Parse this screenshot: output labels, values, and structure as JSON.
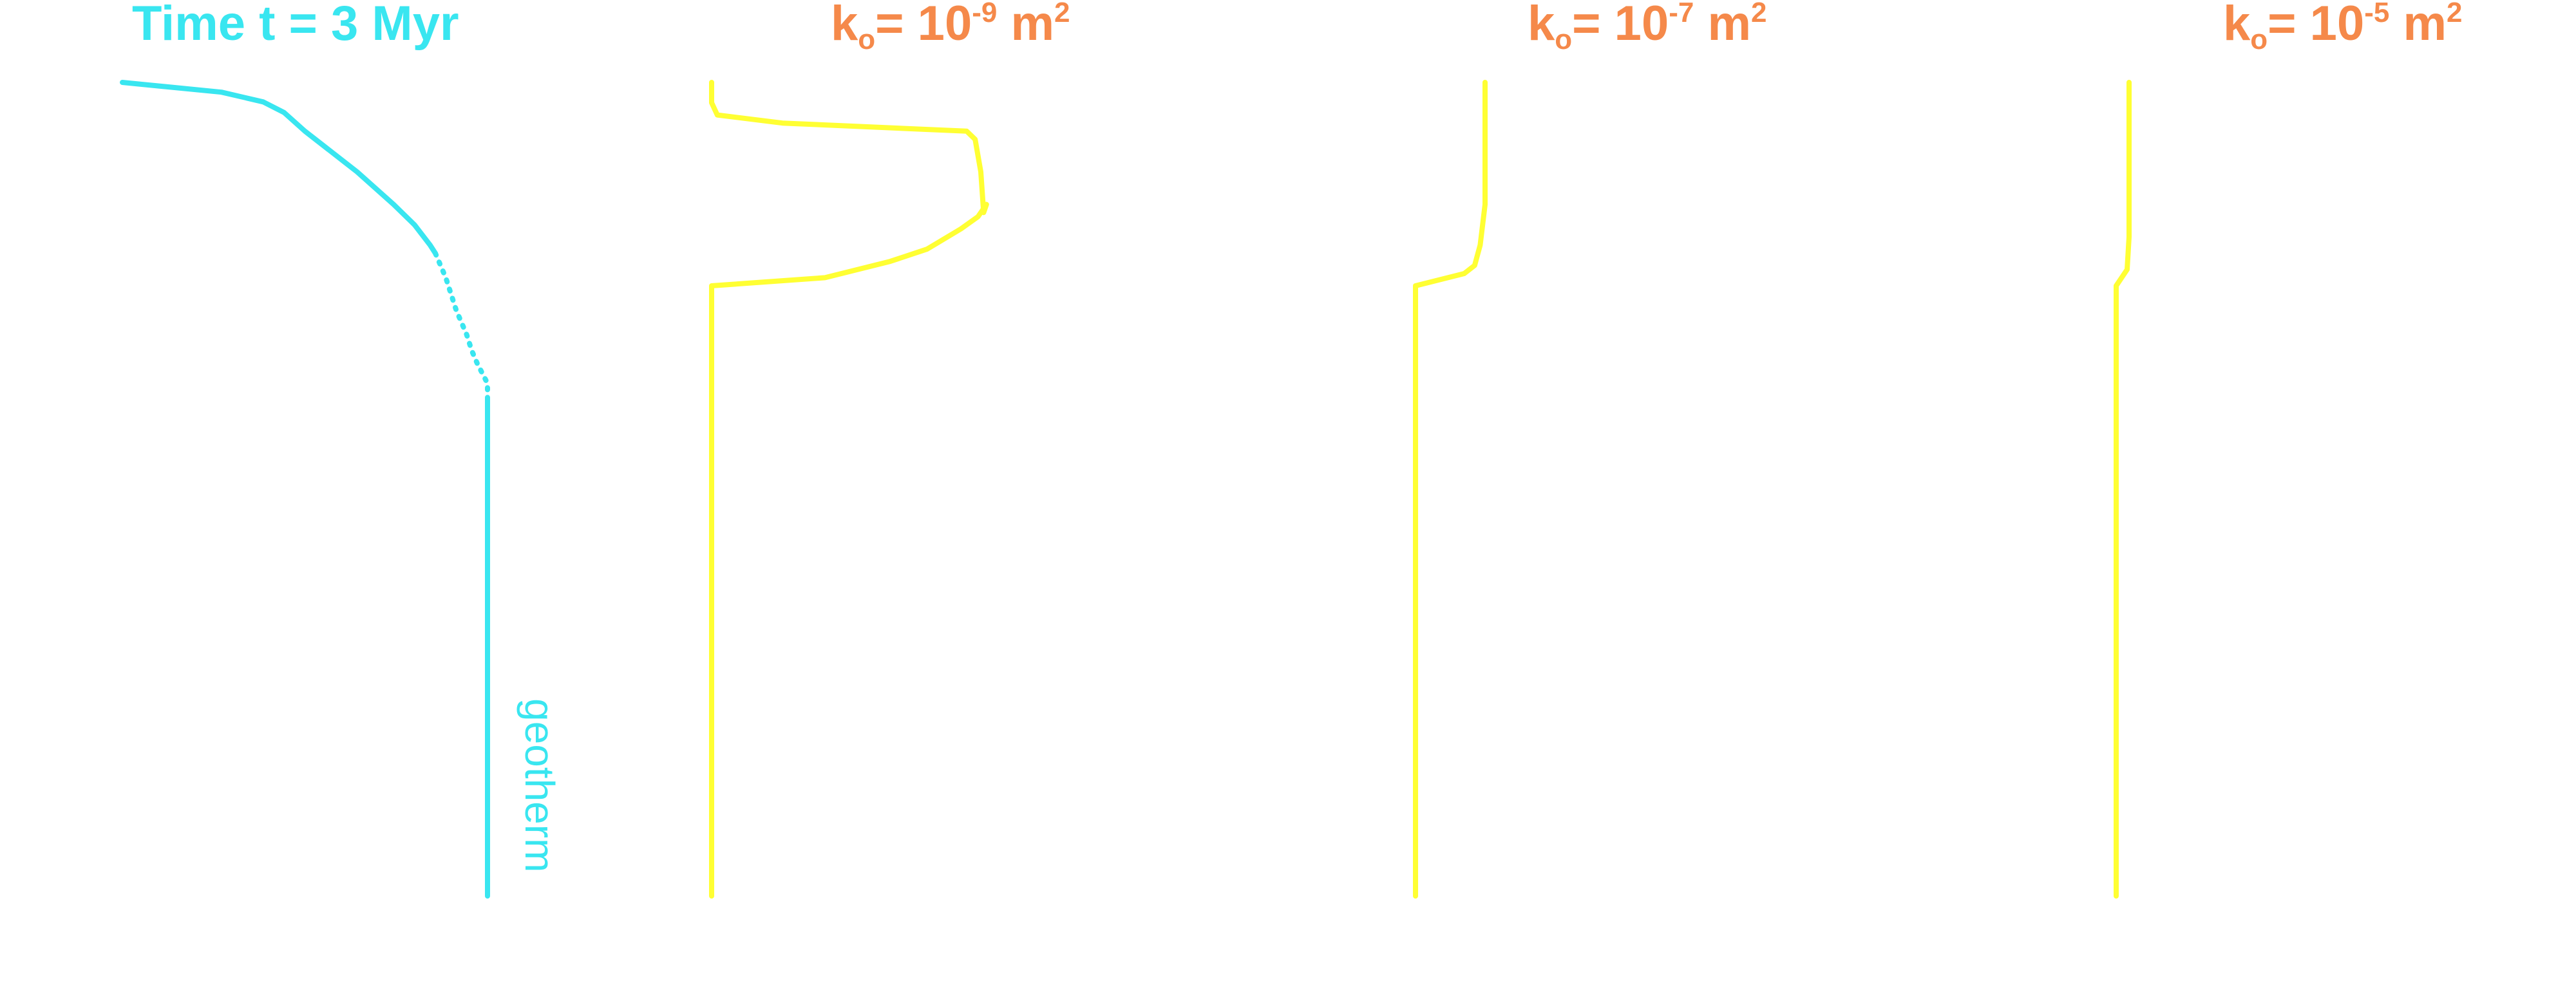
{
  "colors": {
    "geotherm": "#39e6f0",
    "profile": "#ffff33",
    "permeability_title": "#f5894a",
    "time_title": "#39e6f0"
  },
  "chart_data": {
    "type": "line",
    "grid": false,
    "legend": "none",
    "panels": [
      {
        "id": "geotherm",
        "title": {
          "text": "Time t = 3 Myr"
        },
        "line_label": "geotherm",
        "series": [
          {
            "style": "solid",
            "points": [
              [
                0.0,
                0.0
              ],
              [
                0.19,
                0.012
              ],
              [
                0.27,
                0.024
              ],
              [
                0.31,
                0.037
              ],
              [
                0.35,
                0.06
              ],
              [
                0.45,
                0.11
              ],
              [
                0.52,
                0.15
              ],
              [
                0.56,
                0.175
              ],
              [
                0.59,
                0.2
              ],
              [
                0.6,
                0.21
              ]
            ]
          },
          {
            "style": "dotted",
            "points": [
              [
                0.6,
                0.21
              ],
              [
                0.62,
                0.24
              ],
              [
                0.64,
                0.28
              ],
              [
                0.66,
                0.31
              ],
              [
                0.67,
                0.33
              ],
              [
                0.68,
                0.345
              ],
              [
                0.7,
                0.37
              ],
              [
                0.7,
                0.39
              ]
            ]
          },
          {
            "style": "solid",
            "points": [
              [
                0.7,
                0.39
              ],
              [
                0.7,
                1.0
              ]
            ]
          }
        ]
      },
      {
        "id": "k-1e-9",
        "title": {
          "prefix": "k",
          "subscript": "o",
          "middle": "= 10",
          "exponent": "-9",
          "suffix": " m",
          "unit_exponent": "2"
        },
        "series": [
          {
            "style": "solid",
            "points": [
              [
                0.0,
                0.0
              ],
              [
                0.0,
                0.025
              ],
              [
                0.02,
                0.04
              ],
              [
                0.25,
                0.05
              ],
              [
                0.9,
                0.06
              ],
              [
                0.93,
                0.07
              ],
              [
                0.95,
                0.11
              ],
              [
                0.96,
                0.16
              ],
              [
                0.97,
                0.15
              ],
              [
                0.94,
                0.165
              ],
              [
                0.88,
                0.18
              ],
              [
                0.76,
                0.205
              ],
              [
                0.63,
                0.22
              ],
              [
                0.4,
                0.24
              ],
              [
                0.0,
                0.25
              ],
              [
                0.0,
                1.0
              ]
            ]
          }
        ]
      },
      {
        "id": "k-1e-7",
        "title": {
          "prefix": "k",
          "subscript": "o",
          "middle": "= 10",
          "exponent": "-7",
          "suffix": " m",
          "unit_exponent": "2"
        },
        "series": [
          {
            "style": "solid",
            "points": [
              [
                1.0,
                0.0
              ],
              [
                1.0,
                0.15
              ],
              [
                0.93,
                0.2
              ],
              [
                0.85,
                0.225
              ],
              [
                0.7,
                0.235
              ],
              [
                0.0,
                0.25
              ],
              [
                0.0,
                1.0
              ]
            ]
          }
        ]
      },
      {
        "id": "k-1e-5",
        "title": {
          "prefix": "k",
          "subscript": "o",
          "middle": "= 10",
          "exponent": "-5",
          "suffix": " m",
          "unit_exponent": "2"
        },
        "series": [
          {
            "style": "solid",
            "points": [
              [
                1.0,
                0.0
              ],
              [
                1.0,
                0.19
              ],
              [
                0.85,
                0.23
              ],
              [
                0.0,
                0.25
              ],
              [
                0.0,
                1.0
              ]
            ]
          }
        ]
      }
    ]
  }
}
